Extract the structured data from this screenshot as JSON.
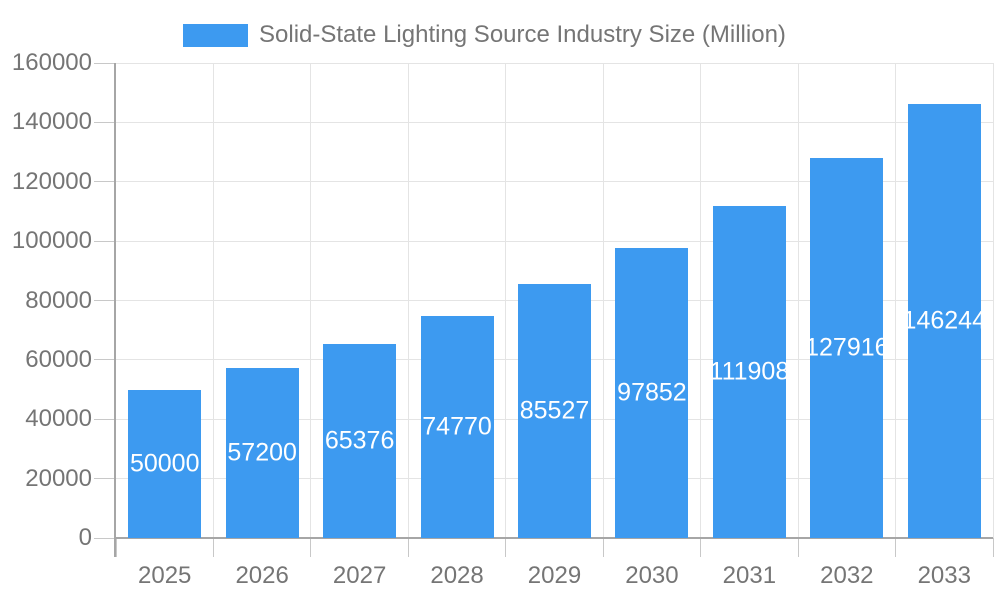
{
  "chart_data": {
    "type": "bar",
    "legend": {
      "label": "Solid-State Lighting Source Industry Size (Million)",
      "position": "top-center"
    },
    "categories": [
      "2025",
      "2026",
      "2027",
      "2028",
      "2029",
      "2030",
      "2031",
      "2032",
      "2033"
    ],
    "series": [
      {
        "name": "Solid-State Lighting Source Industry Size (Million)",
        "values": [
          50000,
          57200,
          65376,
          74770,
          85527,
          97852,
          111908,
          127916,
          146244
        ]
      }
    ],
    "bar_value_labels": [
      "50000",
      "57200",
      "65376",
      "74770",
      "85527",
      "97852",
      "111908",
      "127916",
      "146244"
    ],
    "title": "",
    "xlabel": "",
    "ylabel": "",
    "ylim": [
      0,
      160000
    ],
    "ytick_step": 20000,
    "ytick_labels": [
      "0",
      "20000",
      "40000",
      "60000",
      "80000",
      "100000",
      "120000",
      "140000",
      "160000"
    ],
    "grid": true,
    "bar_labels_inside": true
  },
  "colors": {
    "bar": "#3D9AF0",
    "gridline": "#E4E4E4",
    "tick": "#C8C8C8",
    "axis_line": "#A6A6A6",
    "axis_text": "#757575",
    "legend_text": "#757575",
    "bar_label_text": "#FFFFFF",
    "background": "#FFFFFF"
  }
}
